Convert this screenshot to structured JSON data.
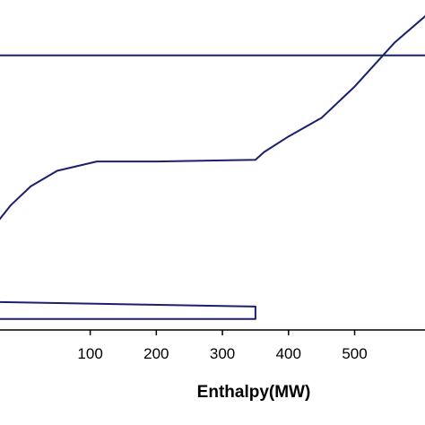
{
  "chart_data": {
    "type": "line",
    "title": "",
    "xlabel": "Enthalpy(MW)",
    "ylabel": "",
    "xlim": [
      -50,
      620
    ],
    "ylim": [
      0,
      100
    ],
    "x_ticks": [
      100,
      200,
      300,
      400,
      500
    ],
    "x_tick_labels": [
      "100",
      "200",
      "300",
      "400",
      "500"
    ],
    "grid": false,
    "legend": "none",
    "series_color": "#1a1f6e",
    "series": [
      {
        "x": [
          -50,
          620
        ],
        "y": [
          88,
          88
        ]
      },
      {
        "x": [
          -50,
          -20,
          10,
          50,
          110,
          200,
          350,
          363,
          400,
          450,
          500,
          560,
          620
        ],
        "y": [
          32,
          40,
          46,
          51,
          54,
          54,
          54.5,
          57,
          62,
          68,
          78,
          92,
          103
        ]
      },
      {
        "x": [
          -50,
          350,
          350,
          -50
        ],
        "y": [
          9,
          7.5,
          3.5,
          3.5
        ]
      }
    ]
  }
}
